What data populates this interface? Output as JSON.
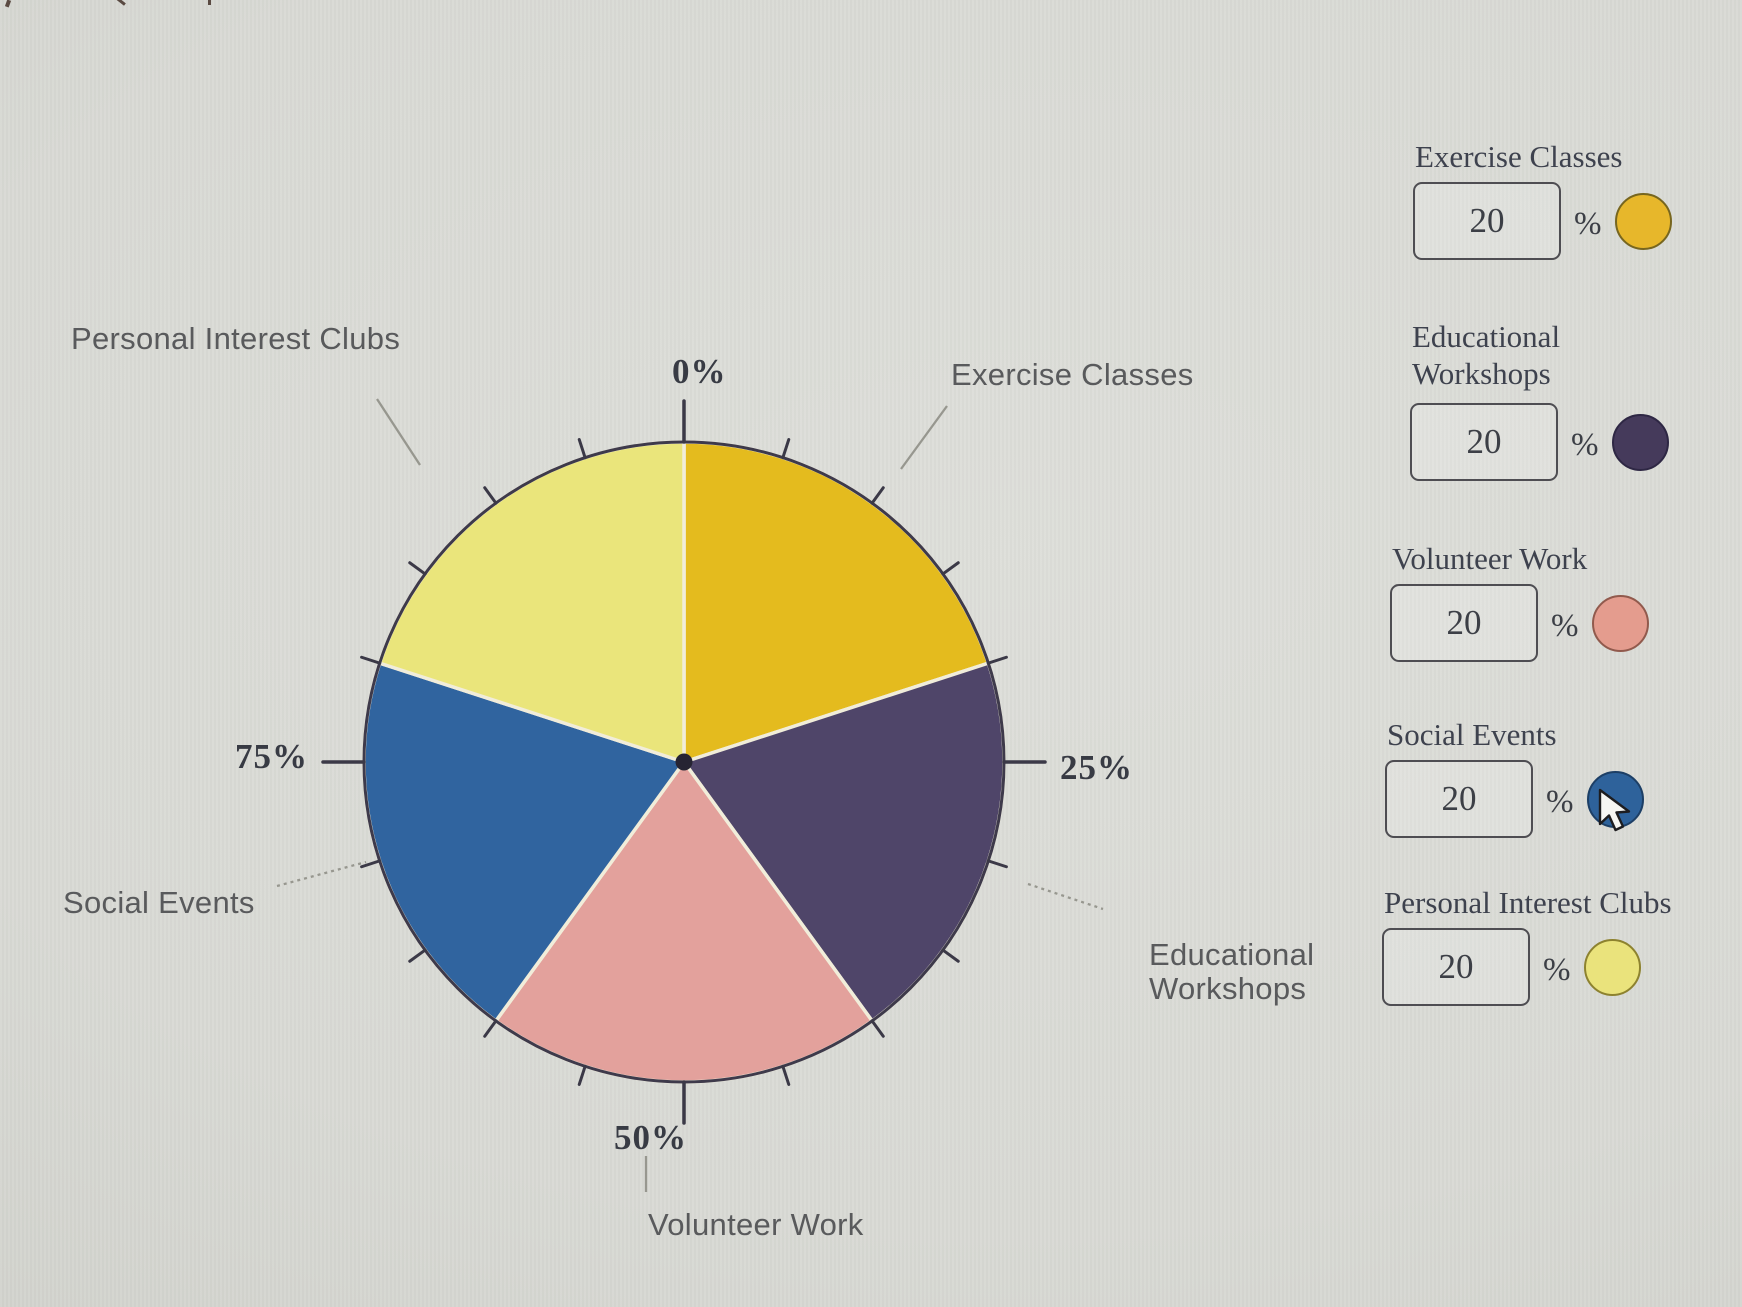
{
  "chart_data": {
    "type": "pie",
    "title": "",
    "categories": [
      "Exercise Classes",
      "Educational Workshops",
      "Volunteer Work",
      "Social Events",
      "Personal Interest Clubs"
    ],
    "values": [
      20,
      20,
      20,
      20,
      20
    ],
    "unit": "%",
    "colors": [
      "#e4bb1e",
      "#4f4569",
      "#e3a19c",
      "#30649f",
      "#eae57b"
    ],
    "start_angle_deg": 0,
    "direction": "clockwise",
    "axis_tick_labels": [
      "0%",
      "25%",
      "50%",
      "75%"
    ],
    "minor_tick_step_percent": 5,
    "divider_color": "#f1edda",
    "outline_color": "#3e3a4b",
    "tick_color": "#3b3947",
    "leader_color": "#97978f"
  },
  "pie_labels": {
    "exercise_classes": "Exercise Classes",
    "educational_workshops": "Educational\nWorkshops",
    "volunteer_work": "Volunteer Work",
    "social_events": "Social Events",
    "personal_interest_clubs": "Personal Interest Clubs"
  },
  "controls": {
    "rows": [
      {
        "label": "Exercise Classes",
        "value": "20",
        "unit": "%",
        "swatch_color": "#e7b72b",
        "swatch_border": "#77661f"
      },
      {
        "label": "Educational\nWorkshops",
        "value": "20",
        "unit": "%",
        "swatch_color": "#453a5b",
        "swatch_border": "#2e2744"
      },
      {
        "label": "Volunteer Work",
        "value": "20",
        "unit": "%",
        "swatch_color": "#e49c8e",
        "swatch_border": "#915a4d"
      },
      {
        "label": "Social Events",
        "value": "20",
        "unit": "%",
        "swatch_color": "#2e629b",
        "swatch_border": "#1d3f66"
      },
      {
        "label": "Personal Interest Clubs",
        "value": "20",
        "unit": "%",
        "swatch_color": "#eae37c",
        "swatch_border": "#8d822f"
      }
    ]
  }
}
